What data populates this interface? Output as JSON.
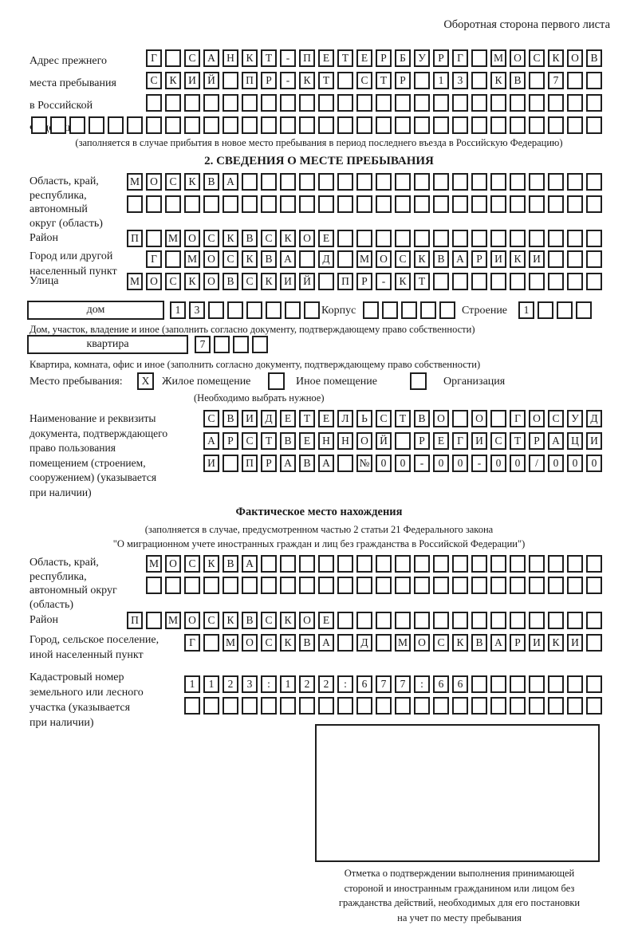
{
  "header": {
    "note": "Оборотная сторона первого листа"
  },
  "prev_address": {
    "label": "Адрес прежнего\nместа пребывания\nв Российской\nФедерации",
    "row1": {
      "value": "Г САНКТ-ПЕТЕРБУРГ МОСКОВ",
      "count": 24
    },
    "row2": {
      "value": "СКИЙ ПР-КТ СТР 13 КВ 7",
      "count": 24
    },
    "row3": {
      "value": "",
      "count": 24
    },
    "row4": {
      "value": "",
      "count": 30
    },
    "caption": "(заполняется в случае прибытия в новое место пребывания в период последнего въезда в Российскую Федерацию)"
  },
  "section2": {
    "title": "2. СВЕДЕНИЯ О МЕСТЕ ПРЕБЫВАНИЯ",
    "region_label": "Область, край,\nреспублика,\nавтономный\nокруг (область)",
    "region_row1": {
      "value": "МОСКВА",
      "count": 25
    },
    "region_row2": {
      "value": "",
      "count": 25
    },
    "district_label": "Район",
    "district_row": {
      "value": "П МОСКВСКОЕ",
      "count": 25
    },
    "city_label": "Город или другой\nнаселенный пункт",
    "city_row": {
      "value": "Г МОСКВА Д МОСКВАРИКИ",
      "count": 24
    },
    "street_label": "Улица",
    "street_row": {
      "value": "МОСКОВСКИЙ ПР-КТ",
      "count": 25
    },
    "house_box_label": "дом",
    "house_row": {
      "value": "13",
      "count": 8
    },
    "korpus_label": "Корпус",
    "korpus_row": {
      "value": "",
      "count": 5
    },
    "stroenie_label": "Строение",
    "stroenie_row": {
      "value": "1",
      "count": 4
    },
    "house_caption": "Дом, участок, владение и иное (заполнить согласно документу, подтверждающему право собственности)",
    "apartment_box_label": "квартира",
    "apartment_row": {
      "value": "7",
      "count": 4
    },
    "apartment_caption": "Квартира, комната, офис и иное (заполнить согласно документу, подтверждающему право собственности)",
    "stay_type": {
      "label": "Место пребывания:",
      "option1": "Жилое помещение",
      "option1_mark": "X",
      "option2": "Иное помещение",
      "option2_mark": "",
      "option3": "Организация",
      "option3_mark": "",
      "caption": "(Необходимо выбрать нужное)"
    },
    "doc_label": "Наименование и реквизиты\nдокумента, подтверждающего\nправо пользования\nпомещением (строением,\nсооружением) (указывается\nпри наличии)",
    "doc_row1": {
      "value": "СВИДЕТЕЛЬСТВО О ГОСУД",
      "count": 21
    },
    "doc_row2": {
      "value": "АРСТВЕННОЙ РЕГИСТРАЦИ",
      "count": 21
    },
    "doc_row3": {
      "value": "И ПРАВА №00-00-00/000",
      "count": 21
    }
  },
  "actual_location": {
    "title": "Фактическое место нахождения",
    "caption1": "(заполняется в случае, предусмотренном частью 2 статьи 21 Федерального закона",
    "caption2": "\"О миграционном учете иностранных граждан и лиц без гражданства в Российской Федерации\")",
    "region_label": "Область, край,\nреспублика,\nавтономный округ\n(область)",
    "region_row1": {
      "value": "МОСКВА",
      "count": 24
    },
    "region_row2": {
      "value": "",
      "count": 24
    },
    "district_label": "Район",
    "district_row": {
      "value": "П МОСКВСКОЕ",
      "count": 25
    },
    "city_label": "Город, сельское поселение,\nиной населенный пункт",
    "city_row": {
      "value": "Г МОСКВА Д МОСКВАРИКИ",
      "count": 22
    },
    "cadastre_label": "Кадастровый номер\nземельного или лесного\nучастка (указывается\nпри наличии)",
    "cadastre_row1": {
      "value": "1123:122:677:66",
      "count": 22
    },
    "cadastre_row2": {
      "value": "",
      "count": 22
    },
    "stamp_caption": "Отметка о подтверждении выполнения принимающей\nстороной и иностранным гражданином или лицом без\nгражданства действий, необходимых для его постановки\nна учет по месту пребывания"
  }
}
